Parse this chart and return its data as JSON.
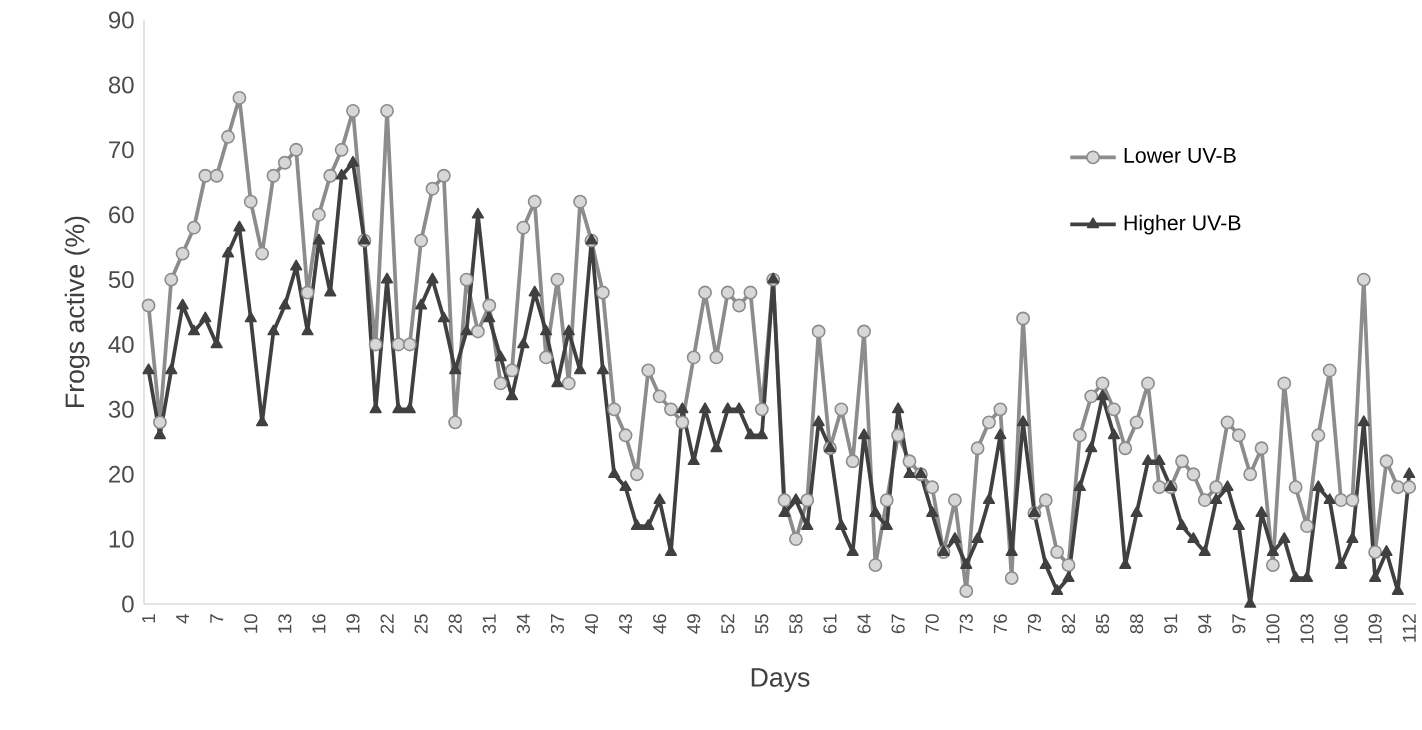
{
  "chart_data": {
    "type": "line",
    "xlabel": "Days",
    "ylabel": "Frogs active (%)",
    "categories": [
      "1",
      null,
      null,
      "4",
      null,
      null,
      "7",
      null,
      null,
      "10",
      null,
      null,
      "13",
      null,
      null,
      "16",
      null,
      null,
      "19",
      null,
      null,
      "22",
      null,
      null,
      "25",
      null,
      null,
      "28",
      null,
      null,
      "31",
      null,
      null,
      "34",
      null,
      null,
      "37",
      null,
      null,
      "40",
      null,
      null,
      "43",
      null,
      null,
      "46",
      null,
      null,
      "49",
      null,
      null,
      "52",
      null,
      null,
      "55",
      null,
      null,
      "58",
      null,
      null,
      "61",
      null,
      null,
      "64",
      null,
      null,
      "67",
      null,
      null,
      "70",
      null,
      null,
      "73",
      null,
      null,
      "76",
      null,
      null,
      "79",
      null,
      null,
      "82",
      null,
      null,
      "85",
      null,
      null,
      "88",
      null,
      null,
      "91",
      null,
      null,
      "94",
      null,
      null,
      "97",
      null,
      null,
      "100",
      null,
      null,
      "103",
      null,
      null,
      "106",
      null,
      null,
      "109",
      null,
      null,
      "112"
    ],
    "series": [
      {
        "name": "Lower UV-B",
        "color": "#8c8c8c",
        "marker": "circle",
        "values": [
          46,
          28,
          50,
          54,
          58,
          66,
          66,
          72,
          78,
          62,
          54,
          66,
          68,
          70,
          48,
          60,
          66,
          70,
          76,
          56,
          40,
          76,
          40,
          40,
          56,
          64,
          66,
          28,
          50,
          42,
          46,
          34,
          36,
          58,
          62,
          38,
          50,
          34,
          62,
          56,
          48,
          30,
          26,
          20,
          36,
          32,
          30,
          28,
          38,
          48,
          38,
          48,
          46,
          48,
          30,
          50,
          16,
          10,
          16,
          42,
          24,
          30,
          22,
          42,
          6,
          16,
          26,
          22,
          20,
          18,
          8,
          16,
          2,
          24,
          28,
          30,
          4,
          44,
          14,
          16,
          8,
          6,
          26,
          32,
          34,
          30,
          24,
          28,
          34,
          18,
          18,
          22,
          20,
          16,
          18,
          28,
          26,
          20,
          24,
          6,
          34,
          18,
          12,
          26,
          36,
          16,
          16,
          50,
          8,
          22,
          18,
          18
        ]
      },
      {
        "name": "Higher UV-B",
        "color": "#404040",
        "marker": "triangle",
        "values": [
          36,
          26,
          36,
          46,
          42,
          44,
          40,
          54,
          58,
          44,
          28,
          42,
          46,
          52,
          42,
          56,
          48,
          66,
          68,
          56,
          30,
          50,
          30,
          30,
          46,
          50,
          44,
          36,
          42,
          60,
          44,
          38,
          32,
          40,
          48,
          42,
          34,
          42,
          36,
          56,
          36,
          20,
          18,
          12,
          12,
          16,
          8,
          30,
          22,
          30,
          24,
          30,
          30,
          26,
          26,
          50,
          14,
          16,
          12,
          28,
          24,
          12,
          8,
          26,
          14,
          12,
          30,
          20,
          20,
          14,
          8,
          10,
          6,
          10,
          16,
          26,
          8,
          28,
          14,
          6,
          2,
          4,
          18,
          24,
          32,
          26,
          6,
          14,
          22,
          22,
          18,
          12,
          10,
          8,
          16,
          18,
          12,
          0,
          14,
          8,
          10,
          4,
          4,
          18,
          16,
          6,
          10,
          28,
          4,
          8,
          2,
          20
        ]
      }
    ],
    "ylim": [
      0,
      90
    ],
    "yticks": [
      0,
      10,
      20,
      30,
      40,
      50,
      60,
      70,
      80,
      90
    ],
    "grid": false,
    "legend": "right",
    "line_style": "solid"
  }
}
